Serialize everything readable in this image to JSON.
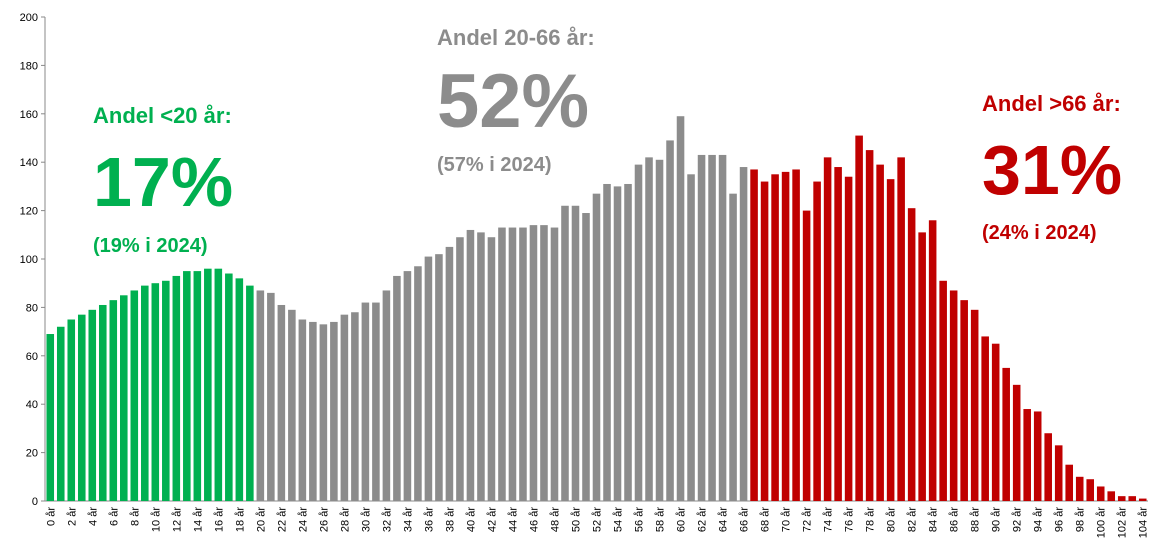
{
  "chart_data": {
    "type": "bar",
    "categories": [
      "0 år",
      null,
      "2 år",
      null,
      "4 år",
      null,
      "6 år",
      null,
      "8 år",
      null,
      "10 år",
      null,
      "12 år",
      null,
      "14 år",
      null,
      "16 år",
      null,
      "18 år",
      null,
      "20 år",
      null,
      "22 år",
      null,
      "24 år",
      null,
      "26 år",
      null,
      "28 år",
      null,
      "30 år",
      null,
      "32 år",
      null,
      "34 år",
      null,
      "36 år",
      null,
      "38 år",
      null,
      "40 år",
      null,
      "42 år",
      null,
      "44 år",
      null,
      "46 år",
      null,
      "48 år",
      null,
      "50 år",
      null,
      "52 år",
      null,
      "54 år",
      null,
      "56 år",
      null,
      "58 år",
      null,
      "60 år",
      null,
      "62 år",
      null,
      "64 år",
      null,
      "66 år",
      null,
      "68 år",
      null,
      "70 år",
      null,
      "72 år",
      null,
      "74 år",
      null,
      "76 år",
      null,
      "78 år",
      null,
      "80 år",
      null,
      "82 år",
      null,
      "84 år",
      null,
      "86 år",
      null,
      "88 år",
      null,
      "90 år",
      null,
      "92 år",
      null,
      "94 år",
      null,
      "96 år",
      null,
      "98 år",
      null,
      "100 år",
      null,
      "102 år",
      null,
      "104 år"
    ],
    "series": [
      {
        "color": "#00b050",
        "values": [
          69,
          72,
          75,
          77,
          79,
          81,
          83,
          85,
          87,
          89,
          90,
          91,
          93,
          95,
          95,
          96,
          96,
          94,
          92,
          89,
          null,
          null,
          null,
          null,
          null,
          null,
          null,
          null,
          null,
          null,
          null,
          null,
          null,
          null,
          null,
          null,
          null,
          null,
          null,
          null,
          null,
          null,
          null,
          null,
          null,
          null,
          null,
          null,
          null,
          null,
          null,
          null,
          null,
          null,
          null,
          null,
          null,
          null,
          null,
          null,
          null,
          null,
          null,
          null,
          null,
          null,
          null,
          null,
          null,
          null,
          null,
          null,
          null,
          null,
          null,
          null,
          null,
          null,
          null,
          null,
          null,
          null,
          null,
          null,
          null,
          null,
          null,
          null,
          null,
          null,
          null,
          null,
          null,
          null,
          null,
          null,
          null,
          null,
          null,
          null,
          null,
          null,
          null,
          null,
          null
        ]
      },
      {
        "color": "#8c8c8c",
        "values": [
          null,
          null,
          null,
          null,
          null,
          null,
          null,
          null,
          null,
          null,
          null,
          null,
          null,
          null,
          null,
          null,
          null,
          null,
          null,
          null,
          87,
          86,
          81,
          79,
          75,
          74,
          73,
          74,
          77,
          78,
          82,
          82,
          87,
          93,
          95,
          97,
          101,
          102,
          105,
          109,
          112,
          111,
          109,
          113,
          113,
          113,
          114,
          114,
          113,
          122,
          122,
          119,
          127,
          131,
          130,
          131,
          139,
          142,
          141,
          149,
          159,
          135,
          143,
          143,
          143,
          127,
          138,
          null,
          null,
          null,
          null,
          null,
          null,
          null,
          null,
          null,
          null,
          null,
          null,
          null,
          null,
          null,
          null,
          null,
          null,
          null,
          null,
          null,
          null,
          null,
          null,
          null,
          null,
          null,
          null,
          null,
          null,
          null,
          null,
          null,
          null,
          null,
          null,
          null,
          null
        ]
      },
      {
        "color": "#c00000",
        "values": [
          null,
          null,
          null,
          null,
          null,
          null,
          null,
          null,
          null,
          null,
          null,
          null,
          null,
          null,
          null,
          null,
          null,
          null,
          null,
          null,
          null,
          null,
          null,
          null,
          null,
          null,
          null,
          null,
          null,
          null,
          null,
          null,
          null,
          null,
          null,
          null,
          null,
          null,
          null,
          null,
          null,
          null,
          null,
          null,
          null,
          null,
          null,
          null,
          null,
          null,
          null,
          null,
          null,
          null,
          null,
          null,
          null,
          null,
          null,
          null,
          null,
          null,
          null,
          null,
          null,
          null,
          null,
          137,
          132,
          135,
          136,
          137,
          120,
          132,
          142,
          138,
          134,
          151,
          145,
          139,
          133,
          142,
          121,
          111,
          116,
          91,
          87,
          83,
          79,
          68,
          65,
          55,
          48,
          38,
          37,
          28,
          23,
          15,
          10,
          9,
          6,
          4,
          2,
          2,
          1
        ]
      }
    ],
    "ylim": [
      0,
      200
    ],
    "yticks": [
      0,
      20,
      40,
      60,
      80,
      100,
      120,
      140,
      160,
      180,
      200
    ],
    "grid": false,
    "annotations": [
      {
        "color": "#00b050",
        "lines": [
          "Andel <20 år:",
          "17%",
          "(19% i 2024)"
        ]
      },
      {
        "color": "#8c8c8c",
        "lines": [
          "Andel 20-66 år:",
          "52%",
          "(57% i 2024)"
        ]
      },
      {
        "color": "#c00000",
        "lines": [
          "Andel >66 år:",
          "31%",
          "(24% i 2024)"
        ]
      }
    ]
  }
}
